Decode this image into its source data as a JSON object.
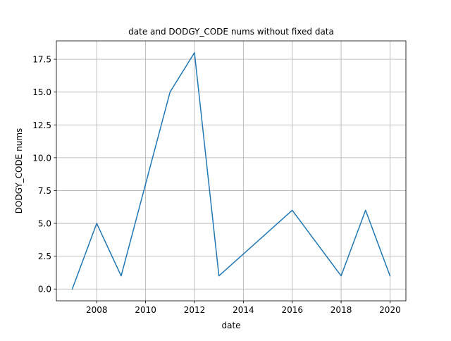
{
  "chart_data": {
    "type": "line",
    "title": "date and DODGY_CODE nums without fixed data",
    "xlabel": "date",
    "ylabel": "DODGY_CODE nums",
    "x": [
      2007,
      2008,
      2009,
      2011,
      2012,
      2013,
      2016,
      2018,
      2019,
      2020
    ],
    "series": [
      {
        "values": [
          0,
          5,
          1,
          15,
          18,
          1,
          6,
          1,
          6,
          1
        ],
        "color": "#1f77b4"
      }
    ],
    "xlim": [
      2006.35,
      2020.65
    ],
    "ylim": [
      -0.9,
      18.9
    ],
    "xticks": [
      2008,
      2010,
      2012,
      2014,
      2016,
      2018,
      2020
    ],
    "xtick_labels": [
      "2008",
      "2010",
      "2012",
      "2014",
      "2016",
      "2018",
      "2020"
    ],
    "yticks": [
      0,
      2.5,
      5,
      7.5,
      10,
      12.5,
      15,
      17.5
    ],
    "ytick_labels": [
      "0.0",
      "2.5",
      "5.0",
      "7.5",
      "10.0",
      "12.5",
      "15.0",
      "17.5"
    ],
    "grid": true
  }
}
